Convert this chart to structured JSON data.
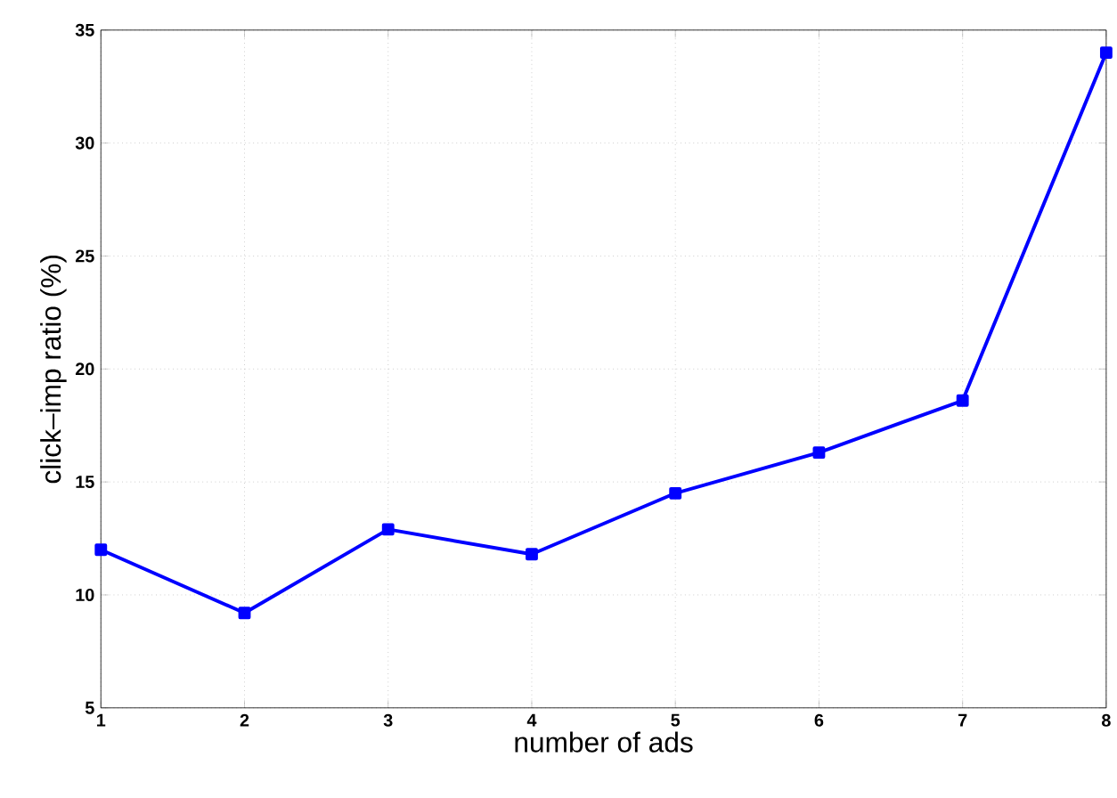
{
  "chart_data": {
    "type": "line",
    "xlabel": "number of ads",
    "ylabel": "click–imp ratio (%)",
    "x": [
      1,
      2,
      3,
      4,
      5,
      6,
      7,
      8
    ],
    "series": [
      {
        "color": "#0000ff",
        "values": [
          12.0,
          9.2,
          12.9,
          11.8,
          14.5,
          16.3,
          18.6,
          34.0
        ]
      }
    ],
    "xlim": [
      1,
      8
    ],
    "ylim": [
      5,
      35
    ],
    "xticks": [
      1,
      2,
      3,
      4,
      5,
      6,
      7,
      8
    ],
    "yticks": [
      5,
      10,
      15,
      20,
      25,
      30,
      35
    ],
    "grid": true,
    "marker": "square",
    "line_style": "solid"
  }
}
